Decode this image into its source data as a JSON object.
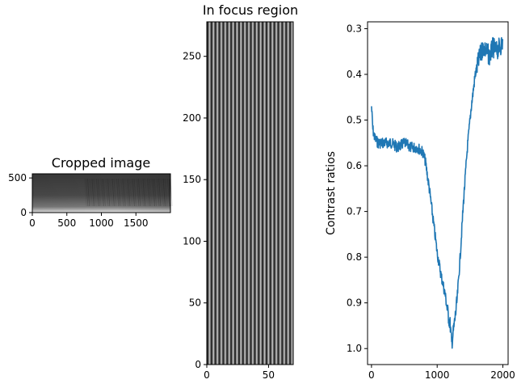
{
  "chart_data": [
    {
      "type": "image",
      "title": "Cropped image",
      "xlabel": "",
      "ylabel": "",
      "xlim": [
        0,
        2000
      ],
      "ylim": [
        560,
        0
      ],
      "xticks": [
        0,
        500,
        1000,
        1500
      ],
      "yticks": [
        0,
        500
      ],
      "colormap": "gray"
    },
    {
      "type": "image",
      "title": "In focus region",
      "xlabel": "",
      "ylabel": "",
      "xlim": [
        0,
        70
      ],
      "ylim": [
        278,
        0
      ],
      "xticks": [
        0,
        50
      ],
      "yticks": [
        0,
        50,
        100,
        150,
        200,
        250
      ],
      "colormap": "gray",
      "stripe_count": 22
    },
    {
      "type": "line",
      "title": "",
      "xlabel": "",
      "ylabel": "Contrast ratios",
      "xlim": [
        -60,
        2080
      ],
      "ylim": [
        0.285,
        1.035
      ],
      "xticks": [
        0,
        1000,
        2000
      ],
      "yticks": [
        0.3,
        0.4,
        0.5,
        0.6,
        0.7,
        0.8,
        0.9,
        1.0
      ],
      "series": [
        {
          "color": "#1f77b4",
          "points": [
            [
              0,
              0.47
            ],
            [
              20,
              0.52
            ],
            [
              50,
              0.54
            ],
            [
              100,
              0.55
            ],
            [
              200,
              0.55
            ],
            [
              300,
              0.55
            ],
            [
              400,
              0.56
            ],
            [
              500,
              0.55
            ],
            [
              600,
              0.56
            ],
            [
              700,
              0.56
            ],
            [
              780,
              0.57
            ],
            [
              820,
              0.59
            ],
            [
              880,
              0.65
            ],
            [
              940,
              0.72
            ],
            [
              1000,
              0.79
            ],
            [
              1060,
              0.84
            ],
            [
              1120,
              0.88
            ],
            [
              1160,
              0.92
            ],
            [
              1200,
              0.95
            ],
            [
              1220,
              0.99
            ],
            [
              1250,
              0.96
            ],
            [
              1300,
              0.9
            ],
            [
              1350,
              0.8
            ],
            [
              1400,
              0.68
            ],
            [
              1460,
              0.56
            ],
            [
              1520,
              0.47
            ],
            [
              1580,
              0.4
            ],
            [
              1650,
              0.36
            ],
            [
              1700,
              0.34
            ],
            [
              1750,
              0.35
            ],
            [
              1800,
              0.36
            ],
            [
              1850,
              0.34
            ],
            [
              1900,
              0.35
            ],
            [
              1950,
              0.34
            ],
            [
              2000,
              0.33
            ]
          ]
        }
      ]
    }
  ]
}
